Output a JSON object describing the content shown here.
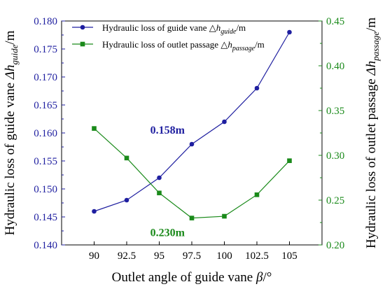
{
  "chart_data": {
    "type": "line",
    "x": [
      90,
      92.5,
      95,
      97.5,
      100,
      102.5,
      105
    ],
    "x_tick_labels": [
      "90",
      "92.5",
      "95",
      "97.5",
      "100",
      "102.5",
      "105"
    ],
    "xlim": [
      87.5,
      107.5
    ],
    "xlabel": {
      "text": "Outlet angle of guide vane ",
      "symbol": "β",
      "unit": "/°"
    },
    "ylim_left": [
      0.14,
      0.18
    ],
    "ylim_right": [
      0.2,
      0.45
    ],
    "yticks_left": [
      "0.140",
      "0.145",
      "0.150",
      "0.155",
      "0.160",
      "0.165",
      "0.170",
      "0.175",
      "0.180"
    ],
    "yticks_right": [
      "0.20",
      "0.25",
      "0.30",
      "0.35",
      "0.40",
      "0.45"
    ],
    "ylabel_left": {
      "text": "Hydraulic loss of guide vane  ",
      "sym": "Δh",
      "sub": "guide",
      "unit": "/m"
    },
    "ylabel_right": {
      "text": "Hydraulic loss of outlet passage  ",
      "sym": "Δh",
      "sub": "passage",
      "unit": "/m"
    },
    "series": [
      {
        "name": "Hydraulic loss of guide vane",
        "legend_sym": "△h",
        "legend_sub": "guide",
        "legend_unit": "/m",
        "axis": "left",
        "marker": "circle",
        "color": "#1f1fa0",
        "values": [
          0.146,
          0.148,
          0.152,
          0.158,
          0.162,
          0.168,
          0.178
        ]
      },
      {
        "name": "Hydraulic loss of outlet passage",
        "legend_sym": "△h",
        "legend_sub": "passage",
        "legend_unit": "/m",
        "axis": "right",
        "marker": "square",
        "color": "#1a8a1a",
        "values": [
          0.33,
          0.297,
          0.258,
          0.23,
          0.232,
          0.256,
          0.294
        ]
      }
    ],
    "annotations": [
      {
        "text": "0.158m",
        "series": 0,
        "color": "#1f1fa0"
      },
      {
        "text": "0.230m",
        "series": 1,
        "color": "#1a8a1a"
      }
    ],
    "legend_position": "top-left",
    "grid": false
  }
}
